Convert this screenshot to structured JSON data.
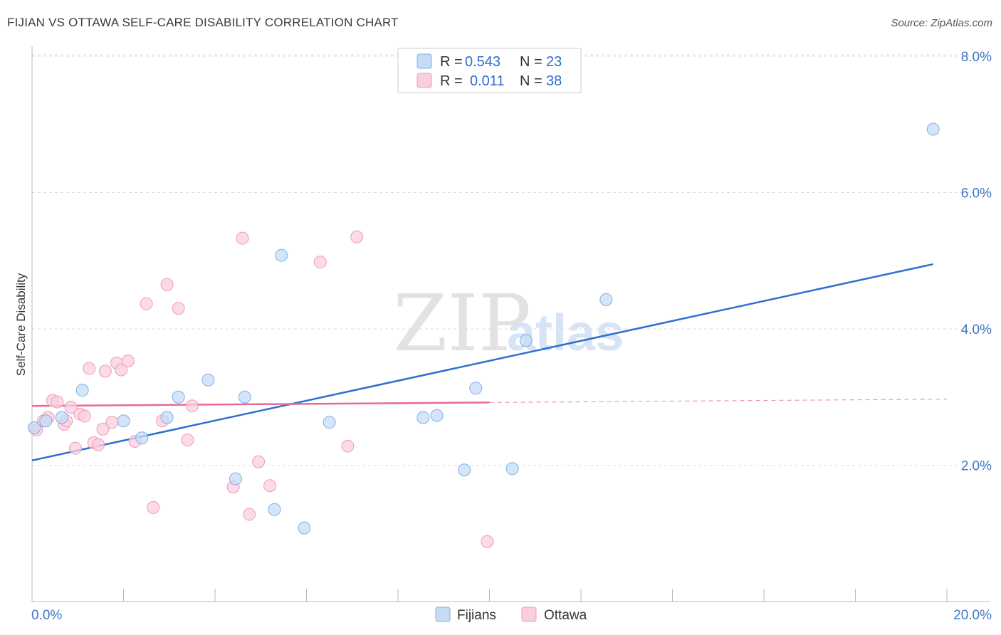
{
  "title": "FIJIAN VS OTTAWA SELF-CARE DISABILITY CORRELATION CHART",
  "source": "Source: ZipAtlas.com",
  "watermark": {
    "zip": "ZIP",
    "atlas": "atlas"
  },
  "colors": {
    "fijians": "#7fb0e8",
    "fijians_fill": "#c6dcf5",
    "ottawa": "#f09ab8",
    "ottawa_fill": "#f9cfdd",
    "fijians_line": "#2d6fd0",
    "ottawa_line": "#e8699a",
    "axis_text": "#3f77c8",
    "grid": "#dddddd"
  },
  "legend": {
    "items": [
      {
        "r_label": "R =",
        "r_value": "0.543",
        "n_label": "N =",
        "n_value": "23"
      },
      {
        "r_label": "R =",
        "r_value": "0.011",
        "n_label": "N =",
        "n_value": "38"
      }
    ]
  },
  "bottom_legend": [
    "Fijians",
    "Ottawa"
  ],
  "chart_data": {
    "type": "scatter",
    "title": "FIJIAN VS OTTAWA SELF-CARE DISABILITY CORRELATION CHART",
    "xlabel": "",
    "ylabel": "Self-Care Disability",
    "xlim": [
      0,
      20
    ],
    "ylim": [
      0,
      8.3
    ],
    "x_tick_labels": [
      "0.0%",
      "20.0%"
    ],
    "y_ticks": [
      2,
      4,
      6,
      8
    ],
    "y_tick_labels": [
      "2.0%",
      "4.0%",
      "6.0%",
      "8.0%"
    ],
    "grid": "horizontal dashed",
    "legend_placement": "top-center",
    "series": [
      {
        "name": "Fijians",
        "points": [
          [
            0.05,
            2.55
          ],
          [
            0.65,
            2.7
          ],
          [
            1.1,
            3.1
          ],
          [
            0.3,
            2.65
          ],
          [
            2.0,
            2.65
          ],
          [
            2.4,
            2.4
          ],
          [
            2.95,
            2.7
          ],
          [
            3.2,
            3.0
          ],
          [
            3.85,
            3.25
          ],
          [
            4.45,
            1.8
          ],
          [
            4.65,
            3.0
          ],
          [
            5.3,
            1.35
          ],
          [
            5.45,
            5.08
          ],
          [
            5.95,
            1.08
          ],
          [
            6.5,
            2.63
          ],
          [
            8.55,
            2.7
          ],
          [
            8.85,
            2.73
          ],
          [
            9.45,
            1.93
          ],
          [
            9.7,
            3.13
          ],
          [
            10.5,
            1.95
          ],
          [
            10.8,
            3.83
          ],
          [
            12.55,
            4.43
          ],
          [
            19.7,
            6.93
          ]
        ],
        "trend": {
          "x": [
            0,
            19.7
          ],
          "y": [
            2.07,
            4.95
          ]
        }
      },
      {
        "name": "Ottawa",
        "points": [
          [
            0.05,
            2.55
          ],
          [
            0.25,
            2.65
          ],
          [
            0.35,
            2.7
          ],
          [
            0.45,
            2.95
          ],
          [
            0.55,
            2.93
          ],
          [
            0.7,
            2.6
          ],
          [
            0.75,
            2.65
          ],
          [
            0.85,
            2.85
          ],
          [
            0.95,
            2.25
          ],
          [
            1.05,
            2.75
          ],
          [
            1.15,
            2.72
          ],
          [
            1.25,
            3.42
          ],
          [
            1.35,
            2.33
          ],
          [
            1.45,
            2.3
          ],
          [
            1.55,
            2.53
          ],
          [
            1.6,
            3.38
          ],
          [
            1.75,
            2.63
          ],
          [
            1.85,
            3.5
          ],
          [
            1.95,
            3.4
          ],
          [
            2.1,
            3.53
          ],
          [
            2.25,
            2.35
          ],
          [
            2.5,
            4.37
          ],
          [
            2.65,
            1.38
          ],
          [
            2.85,
            2.65
          ],
          [
            2.95,
            4.65
          ],
          [
            3.2,
            4.3
          ],
          [
            3.4,
            2.37
          ],
          [
            3.5,
            2.87
          ],
          [
            4.4,
            1.68
          ],
          [
            4.6,
            5.33
          ],
          [
            4.75,
            1.28
          ],
          [
            4.95,
            2.05
          ],
          [
            5.2,
            1.7
          ],
          [
            6.3,
            4.98
          ],
          [
            6.9,
            2.28
          ],
          [
            7.1,
            5.35
          ],
          [
            9.95,
            0.88
          ],
          [
            0.1,
            2.52
          ]
        ],
        "trend": {
          "x": [
            0,
            10
          ],
          "y": [
            2.87,
            2.92
          ]
        },
        "trend_dashed": {
          "x": [
            10,
            20
          ],
          "y": [
            2.92,
            2.97
          ]
        }
      }
    ]
  }
}
